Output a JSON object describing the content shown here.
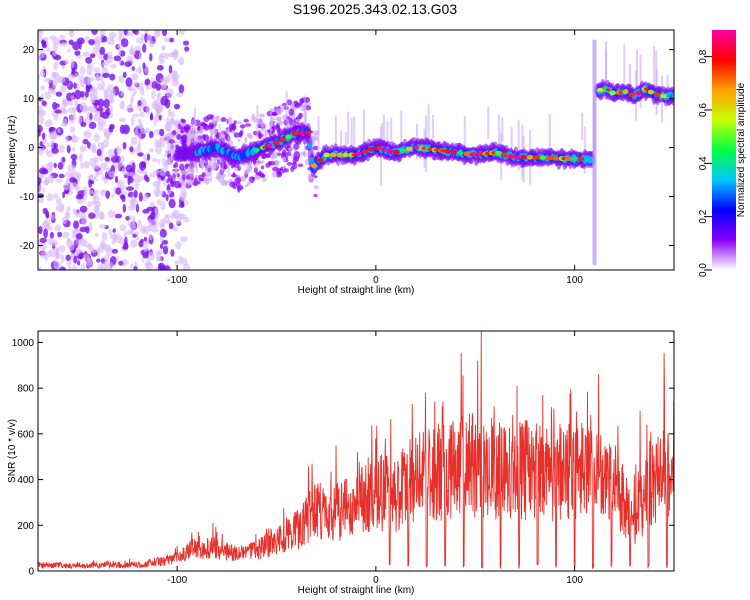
{
  "title": "S196.2025.343.02.13.G03",
  "chart_data": [
    {
      "type": "heatmap",
      "xlabel": "Height of straight line (km)",
      "ylabel": "Frequency (Hz)",
      "xlim": [
        -170,
        150
      ],
      "ylim": [
        -25,
        24
      ],
      "xticks": [
        -100,
        0,
        100
      ],
      "yticks": [
        -20,
        -10,
        0,
        10,
        20
      ],
      "colorbar": {
        "label": "Normalized spectral amplitude",
        "range": [
          0.0,
          0.9
        ],
        "ticks": [
          "0.0",
          "0.2",
          "0.4",
          "0.6",
          "0.8"
        ],
        "colors": [
          "#ffffff",
          "#8a00ff",
          "#0000ff",
          "#00c8ff",
          "#00ff40",
          "#c8ff00",
          "#ffa000",
          "#ff0000",
          "#ff00a0"
        ]
      },
      "ridge": {
        "x": [
          -100,
          -90,
          -80,
          -70,
          -60,
          -50,
          -40,
          -34,
          -32,
          -25,
          -20,
          -10,
          0,
          10,
          20,
          30,
          40,
          50,
          60,
          70,
          80,
          90,
          100,
          109,
          111,
          115,
          120,
          125,
          130,
          135,
          140,
          145,
          150
        ],
        "y": [
          -1.5,
          -1,
          0,
          -2,
          -0.5,
          1,
          3,
          3,
          -4,
          -1.5,
          -1.5,
          -1.5,
          0,
          -1,
          0,
          -0.5,
          -1,
          -1.5,
          -1,
          -2,
          -2,
          -2.2,
          -2.3,
          -2.4,
          11.5,
          12,
          11,
          11.5,
          10.5,
          12,
          11,
          10.5,
          10.5
        ]
      }
    },
    {
      "type": "line",
      "xlabel": "Height of straight line (km)",
      "ylabel": "SNR (10 * v/v)",
      "xlim": [
        -170,
        150
      ],
      "ylim": [
        0,
        1050
      ],
      "xticks": [
        -100,
        0,
        100
      ],
      "yticks": [
        0,
        200,
        400,
        600,
        800,
        1000
      ],
      "color": "#e8302a",
      "envelope": {
        "x": [
          -170,
          -150,
          -120,
          -100,
          -90,
          -80,
          -70,
          -60,
          -50,
          -40,
          -30,
          -20,
          -10,
          0,
          10,
          20,
          30,
          40,
          50,
          60,
          70,
          80,
          90,
          100,
          110,
          120,
          130,
          140,
          150
        ],
        "y": [
          30,
          25,
          30,
          60,
          120,
          110,
          80,
          100,
          150,
          200,
          300,
          280,
          350,
          380,
          370,
          450,
          480,
          500,
          520,
          500,
          480,
          500,
          470,
          500,
          450,
          420,
          250,
          450,
          480
        ]
      },
      "peaks": [
        {
          "x": -150,
          "y": 40
        },
        {
          "x": -100,
          "y": 110
        },
        {
          "x": -82,
          "y": 210
        },
        {
          "x": -55,
          "y": 185
        },
        {
          "x": -20,
          "y": 550
        },
        {
          "x": 0,
          "y": 580
        },
        {
          "x": 25,
          "y": 780
        },
        {
          "x": 43,
          "y": 955
        },
        {
          "x": 53,
          "y": 1050
        },
        {
          "x": 71,
          "y": 810
        },
        {
          "x": 84,
          "y": 770
        },
        {
          "x": 98,
          "y": 795
        },
        {
          "x": 112,
          "y": 860
        },
        {
          "x": 133,
          "y": 700
        },
        {
          "x": 145,
          "y": 955
        }
      ]
    }
  ]
}
